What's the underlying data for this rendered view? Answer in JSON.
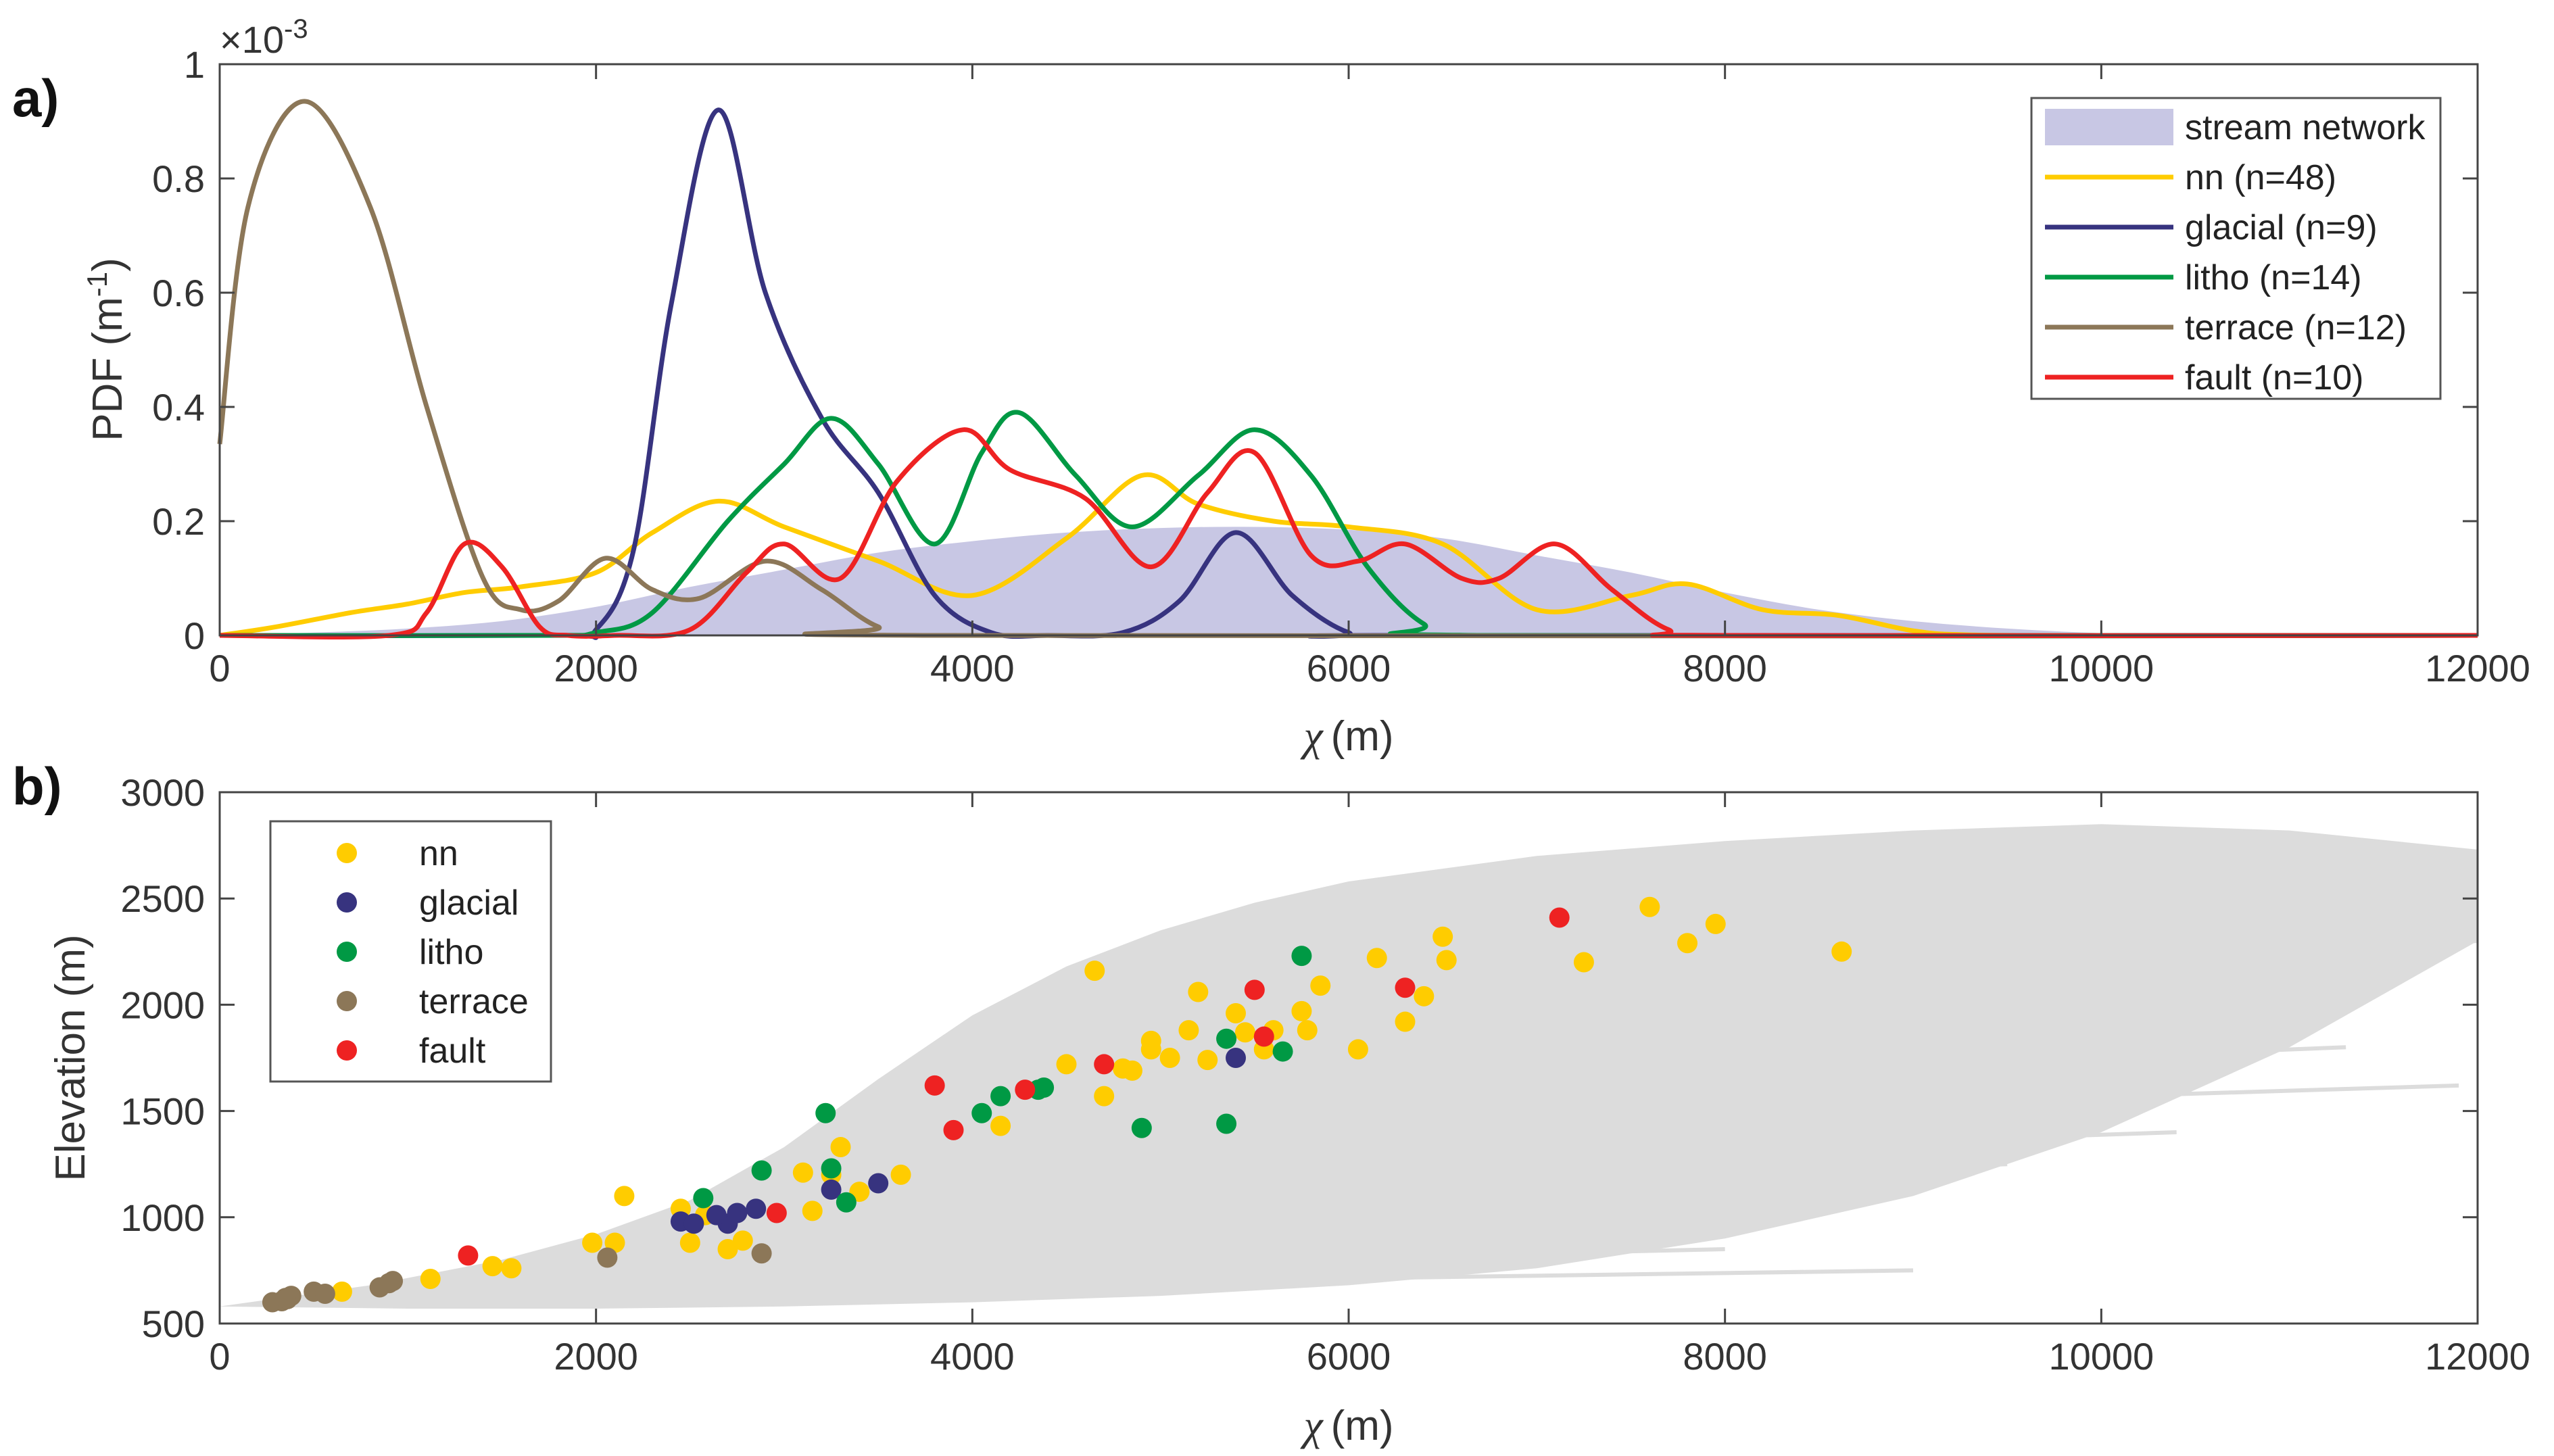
{
  "colors": {
    "nn": "#FFCC00",
    "glacial": "#37337F",
    "litho": "#009944",
    "terrace": "#8C7758",
    "fault": "#EE2222",
    "stream": "#C8C7E4",
    "background_lines": "#DCDCDC"
  },
  "chart_data": [
    {
      "panel": "a)",
      "type": "line",
      "xlabel": "(m)",
      "xlabel_symbol": "χ",
      "ylabel": "PDF (m",
      "ylabel_sup": "-1",
      "ylabel_close": ")",
      "exponent_label": "×10",
      "exponent_sup": "-3",
      "xlim": [
        0,
        12000
      ],
      "ylim": [
        0,
        1
      ],
      "xticks": [
        0,
        2000,
        4000,
        6000,
        8000,
        10000,
        12000
      ],
      "yticks": [
        0,
        0.2,
        0.4,
        0.6,
        0.8,
        1
      ],
      "ytick_labels": [
        "0",
        "0.2",
        "0.4",
        "0.6",
        "0.8",
        "1"
      ],
      "legend_position": "top-right",
      "legend": [
        {
          "key": "stream",
          "label": "stream network",
          "style": "area"
        },
        {
          "key": "nn",
          "label": "nn (n=48)",
          "style": "line"
        },
        {
          "key": "glacial",
          "label": "glacial (n=9)",
          "style": "line"
        },
        {
          "key": "litho",
          "label": "litho (n=14)",
          "style": "line"
        },
        {
          "key": "terrace",
          "label": "terrace (n=12)",
          "style": "line"
        },
        {
          "key": "fault",
          "label": "fault (n=10)",
          "style": "line"
        }
      ],
      "area": {
        "name": "stream network",
        "x": [
          0,
          500,
          1000,
          1500,
          2000,
          2500,
          3000,
          3500,
          4000,
          4500,
          5000,
          5500,
          6000,
          6500,
          7000,
          7500,
          8000,
          8500,
          9000,
          9500,
          10000,
          10500,
          11000,
          11500,
          12000
        ],
        "y": [
          0.0,
          0.005,
          0.012,
          0.025,
          0.05,
          0.085,
          0.115,
          0.145,
          0.165,
          0.18,
          0.188,
          0.19,
          0.185,
          0.17,
          0.14,
          0.11,
          0.075,
          0.045,
          0.025,
          0.012,
          0.004,
          0.002,
          0.001,
          0.0005,
          0.0
        ]
      },
      "series": [
        {
          "name": "nn (n=48)",
          "key": "nn",
          "x": [
            0,
            300,
            700,
            1000,
            1300,
            1600,
            2000,
            2300,
            2650,
            3000,
            3500,
            4000,
            4500,
            4900,
            5200,
            5600,
            6000,
            6500,
            7000,
            7500,
            7800,
            8200,
            8600,
            9000,
            9300,
            10000,
            12000
          ],
          "y": [
            0.0,
            0.015,
            0.04,
            0.055,
            0.075,
            0.085,
            0.11,
            0.18,
            0.235,
            0.19,
            0.13,
            0.07,
            0.17,
            0.28,
            0.23,
            0.2,
            0.19,
            0.16,
            0.045,
            0.07,
            0.09,
            0.045,
            0.035,
            0.008,
            0.001,
            0.0,
            0.0
          ]
        },
        {
          "name": "glacial (n=9)",
          "key": "glacial",
          "x": [
            0,
            1800,
            2000,
            2200,
            2400,
            2650,
            2900,
            3200,
            3500,
            3800,
            4100,
            4400,
            4800,
            5100,
            5400,
            5700,
            6000,
            6300,
            12000
          ],
          "y": [
            0,
            0,
            0.01,
            0.15,
            0.58,
            0.92,
            0.6,
            0.38,
            0.25,
            0.07,
            0.005,
            0,
            0.005,
            0.06,
            0.18,
            0.07,
            0.005,
            0,
            0
          ]
        },
        {
          "name": "litho (n=14)",
          "key": "litho",
          "x": [
            0,
            1700,
            2000,
            2300,
            2700,
            3000,
            3250,
            3500,
            3800,
            4050,
            4250,
            4550,
            4850,
            5200,
            5500,
            5800,
            6100,
            6400,
            6700,
            12000
          ],
          "y": [
            0,
            0,
            0.005,
            0.04,
            0.2,
            0.3,
            0.38,
            0.3,
            0.16,
            0.32,
            0.39,
            0.28,
            0.19,
            0.28,
            0.36,
            0.28,
            0.12,
            0.02,
            0,
            0
          ]
        },
        {
          "name": "terrace (n=12)",
          "key": "terrace",
          "x": [
            0,
            150,
            450,
            800,
            1100,
            1400,
            1600,
            1800,
            2050,
            2300,
            2550,
            2900,
            3200,
            3500,
            3800,
            12000
          ],
          "y": [
            0.335,
            0.75,
            0.935,
            0.75,
            0.4,
            0.1,
            0.045,
            0.06,
            0.135,
            0.08,
            0.065,
            0.13,
            0.08,
            0.015,
            0.0,
            0
          ]
        },
        {
          "name": "fault (n=10)",
          "key": "fault",
          "x": [
            0,
            900,
            1100,
            1300,
            1500,
            1700,
            1850,
            2100,
            2500,
            2800,
            3000,
            3300,
            3600,
            3950,
            4200,
            4600,
            4950,
            5250,
            5500,
            5800,
            6050,
            6300,
            6600,
            6800,
            7100,
            7400,
            7700,
            8000,
            12000
          ],
          "y": [
            0,
            0,
            0.04,
            0.16,
            0.12,
            0.015,
            0.0,
            0.0,
            0.01,
            0.11,
            0.16,
            0.1,
            0.27,
            0.36,
            0.29,
            0.24,
            0.12,
            0.25,
            0.32,
            0.14,
            0.13,
            0.16,
            0.1,
            0.1,
            0.16,
            0.08,
            0.01,
            0,
            0
          ]
        }
      ]
    },
    {
      "panel": "b)",
      "type": "scatter",
      "xlabel": "(m)",
      "xlabel_symbol": "χ",
      "ylabel": "Elevation (m)",
      "xlim": [
        0,
        12000
      ],
      "ylim": [
        500,
        3000
      ],
      "xticks": [
        0,
        2000,
        4000,
        6000,
        8000,
        10000,
        12000
      ],
      "yticks": [
        500,
        1000,
        1500,
        2000,
        2500,
        3000
      ],
      "legend_position": "top-left",
      "legend": [
        {
          "key": "nn",
          "label": "nn"
        },
        {
          "key": "glacial",
          "label": "glacial"
        },
        {
          "key": "litho",
          "label": "litho"
        },
        {
          "key": "terrace",
          "label": "terrace"
        },
        {
          "key": "fault",
          "label": "fault"
        }
      ],
      "background": {
        "name": "stream network profiles",
        "upper": {
          "x": [
            0,
            800,
            1500,
            2000,
            2500,
            3000,
            3500,
            4000,
            4500,
            5000,
            5500,
            6000,
            7000,
            8000,
            9000,
            10000,
            11000,
            12000
          ],
          "y": [
            580,
            680,
            800,
            920,
            1080,
            1330,
            1650,
            1950,
            2180,
            2350,
            2480,
            2580,
            2700,
            2770,
            2820,
            2850,
            2820,
            2730
          ]
        },
        "lower": {
          "x": [
            0,
            1000,
            2000,
            3000,
            4000,
            5000,
            6000,
            7000,
            8000,
            9000,
            10000,
            11000,
            12000
          ],
          "y": [
            580,
            570,
            570,
            580,
            600,
            630,
            680,
            760,
            900,
            1100,
            1400,
            1800,
            2300
          ]
        },
        "strands": [
          {
            "x": [
              5000,
              9000
            ],
            "y": [
              700,
              750
            ]
          },
          {
            "x": [
              5500,
              8000
            ],
            "y": [
              800,
              850
            ]
          },
          {
            "x": [
              6000,
              8800
            ],
            "y": [
              1000,
              1080
            ]
          },
          {
            "x": [
              6500,
              9500
            ],
            "y": [
              1150,
              1250
            ]
          },
          {
            "x": [
              7000,
              10400
            ],
            "y": [
              1300,
              1400
            ]
          },
          {
            "x": [
              7000,
              11300
            ],
            "y": [
              1650,
              1800
            ]
          },
          {
            "x": [
              7500,
              11900
            ],
            "y": [
              1500,
              1620
            ]
          },
          {
            "x": [
              6000,
              12000
            ],
            "y": [
              2100,
              2300
            ]
          },
          {
            "x": [
              6500,
              12000
            ],
            "y": [
              2400,
              2520
            ]
          },
          {
            "x": [
              8000,
              12000
            ],
            "y": [
              2600,
              2720
            ]
          }
        ]
      },
      "series": [
        {
          "name": "nn",
          "key": "nn",
          "points": [
            [
              650,
              650
            ],
            [
              1120,
              710
            ],
            [
              1450,
              770
            ],
            [
              1550,
              760
            ],
            [
              1980,
              880
            ],
            [
              2100,
              880
            ],
            [
              2150,
              1100
            ],
            [
              2450,
              1040
            ],
            [
              2500,
              880
            ],
            [
              2700,
              850
            ],
            [
              2780,
              890
            ],
            [
              3100,
              1210
            ],
            [
              3150,
              1030
            ],
            [
              3250,
              1200
            ],
            [
              3300,
              1330
            ],
            [
              3400,
              1120
            ],
            [
              3620,
              1200
            ],
            [
              4150,
              1430
            ],
            [
              4500,
              1720
            ],
            [
              4650,
              2160
            ],
            [
              4700,
              1570
            ],
            [
              4800,
              1700
            ],
            [
              4850,
              1690
            ],
            [
              4950,
              1790
            ],
            [
              4950,
              1830
            ],
            [
              5050,
              1750
            ],
            [
              5150,
              1880
            ],
            [
              5200,
              2060
            ],
            [
              5250,
              1740
            ],
            [
              5400,
              1960
            ],
            [
              5450,
              1870
            ],
            [
              5550,
              1790
            ],
            [
              5600,
              1880
            ],
            [
              5750,
              1970
            ],
            [
              5780,
              1880
            ],
            [
              5850,
              2090
            ],
            [
              6050,
              1790
            ],
            [
              6150,
              2220
            ],
            [
              6300,
              1920
            ],
            [
              6400,
              2040
            ],
            [
              6500,
              2320
            ],
            [
              6520,
              2210
            ],
            [
              7250,
              2200
            ],
            [
              7600,
              2460
            ],
            [
              7800,
              2290
            ],
            [
              7950,
              2380
            ],
            [
              8620,
              2250
            ],
            [
              2580,
              1010
            ]
          ]
        },
        {
          "name": "glacial",
          "key": "glacial",
          "points": [
            [
              2450,
              980
            ],
            [
              2520,
              970
            ],
            [
              2700,
              970
            ],
            [
              2750,
              1020
            ],
            [
              2850,
              1040
            ],
            [
              3250,
              1130
            ],
            [
              3500,
              1160
            ],
            [
              5400,
              1750
            ],
            [
              2640,
              1010
            ]
          ]
        },
        {
          "name": "litho",
          "key": "litho",
          "points": [
            [
              2570,
              1090
            ],
            [
              2880,
              1220
            ],
            [
              3220,
              1490
            ],
            [
              3250,
              1230
            ],
            [
              3330,
              1070
            ],
            [
              4050,
              1490
            ],
            [
              4150,
              1570
            ],
            [
              4350,
              1600
            ],
            [
              4380,
              1610
            ],
            [
              4900,
              1420
            ],
            [
              5350,
              1840
            ],
            [
              5350,
              1440
            ],
            [
              5650,
              1780
            ],
            [
              5750,
              2230
            ]
          ]
        },
        {
          "name": "terrace",
          "key": "terrace",
          "points": [
            [
              280,
              600
            ],
            [
              330,
              605
            ],
            [
              360,
              615
            ],
            [
              380,
              630
            ],
            [
              500,
              650
            ],
            [
              560,
              640
            ],
            [
              850,
              670
            ],
            [
              900,
              690
            ],
            [
              920,
              700
            ],
            [
              2060,
              810
            ],
            [
              2880,
              830
            ],
            [
              350,
              620
            ]
          ]
        },
        {
          "name": "fault",
          "key": "fault",
          "points": [
            [
              1320,
              820
            ],
            [
              2960,
              1020
            ],
            [
              3800,
              1620
            ],
            [
              3900,
              1410
            ],
            [
              4280,
              1600
            ],
            [
              4700,
              1720
            ],
            [
              5500,
              2070
            ],
            [
              5550,
              1850
            ],
            [
              6300,
              2080
            ],
            [
              7120,
              2410
            ]
          ]
        }
      ]
    }
  ]
}
